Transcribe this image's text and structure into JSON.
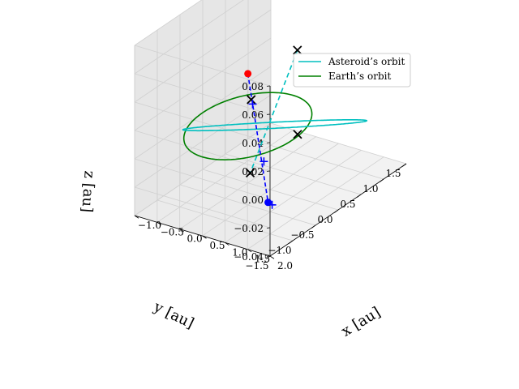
{
  "chart_data": {
    "type": "line3d",
    "title": "",
    "xlabel": "x [au]",
    "ylabel": "y [au]",
    "zlabel": "z [au]",
    "grid": true,
    "legend_position": "top-right",
    "x_ticks": [
      "−1.5",
      "−1.0",
      "−0.5",
      "0.0",
      "0.5",
      "1.0",
      "1.5"
    ],
    "y_ticks": [
      "−1.0",
      "−0.5",
      "0.0",
      "0.5",
      "1.0",
      "1.5",
      "2.0"
    ],
    "z_ticks": [
      "−0.04",
      "−0.02",
      "0.00",
      "0.02",
      "0.04",
      "0.06",
      "0.08"
    ],
    "x_tick_values": [
      -1.5,
      -1.0,
      -0.5,
      0.0,
      0.5,
      1.0,
      1.5
    ],
    "y_tick_values": [
      -1.0,
      -0.5,
      0.0,
      0.5,
      1.0,
      1.5,
      2.0
    ],
    "z_tick_values": [
      -0.04,
      -0.02,
      0.0,
      0.02,
      0.04,
      0.06,
      0.08
    ],
    "xlim": [
      -1.5,
      1.5
    ],
    "ylim": [
      -1.0,
      2.0
    ],
    "zlim": [
      -0.04,
      0.08
    ],
    "series": [
      {
        "name": "Asteroid’s orbit",
        "color": "#00bfbf",
        "style": "solid",
        "semi_major_axis": 1.45,
        "eccentricity": 0.32,
        "argument_of_perihelion_deg": 140,
        "inclination_deg": 4.0,
        "ascending_node_deg": 60
      },
      {
        "name": "Earth’s orbit",
        "color": "#008000",
        "style": "solid",
        "radius": 1.0
      }
    ],
    "markers": {
      "sun": {
        "color": "#ff0000",
        "x": 0.0,
        "y": 0.0,
        "z": 0.037
      },
      "earth": {
        "color": "#0000ff",
        "x": -0.4,
        "y": 0.85,
        "z": -0.037
      },
      "earth_projection_line_color": "#0000ff",
      "asteroid_markers_color": "#000000",
      "plus_markers_color": "#0000ff"
    }
  }
}
